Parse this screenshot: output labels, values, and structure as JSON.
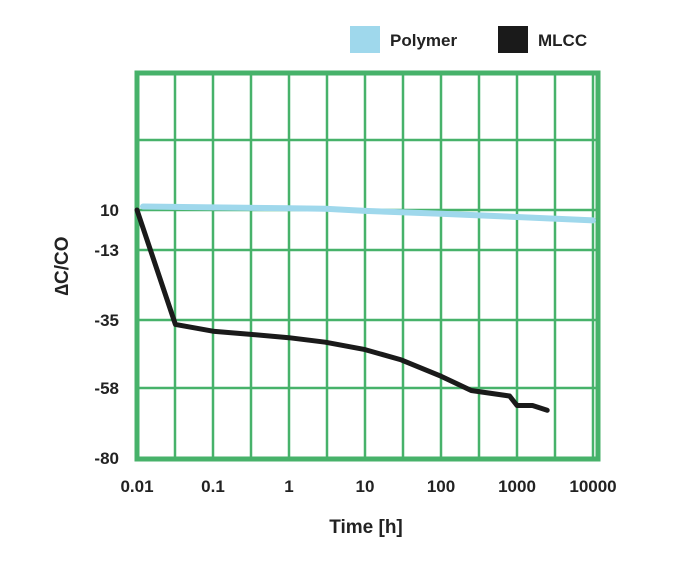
{
  "chart_data": {
    "type": "line",
    "xlabel": "Time [h]",
    "ylabel": "∆C/CO",
    "x_scale": "log",
    "xlim": [
      0.01,
      10000
    ],
    "x_ticks": [
      "0.01",
      "0.1",
      "1",
      "10",
      "100",
      "1000",
      "10000"
    ],
    "y_ticks": [
      "10",
      "-13",
      "-35",
      "-58",
      "-80"
    ],
    "grid": true,
    "legend_position": "top-right",
    "series": [
      {
        "name": "Polymer",
        "color": "#9fd8ec",
        "points": [
          [
            0.012,
            12
          ],
          [
            0.1,
            11.5
          ],
          [
            1,
            11
          ],
          [
            3,
            10.7
          ],
          [
            10,
            9.5
          ],
          [
            100,
            7.8
          ],
          [
            1000,
            6
          ],
          [
            10000,
            4
          ]
        ]
      },
      {
        "name": "MLCC",
        "color": "#1a1a1a",
        "points": [
          [
            0.01,
            10
          ],
          [
            0.032,
            -36.5
          ],
          [
            0.1,
            -38.8
          ],
          [
            0.3,
            -39.8
          ],
          [
            1,
            -41
          ],
          [
            3,
            -42.5
          ],
          [
            10,
            -45
          ],
          [
            30,
            -48.5
          ],
          [
            100,
            -54
          ],
          [
            250,
            -58.8
          ],
          [
            800,
            -60.5
          ],
          [
            1000,
            -63.5
          ],
          [
            1600,
            -63.5
          ],
          [
            2500,
            -65
          ]
        ]
      }
    ]
  },
  "colors": {
    "grid": "#47b26a",
    "frame": "#47b26a"
  }
}
